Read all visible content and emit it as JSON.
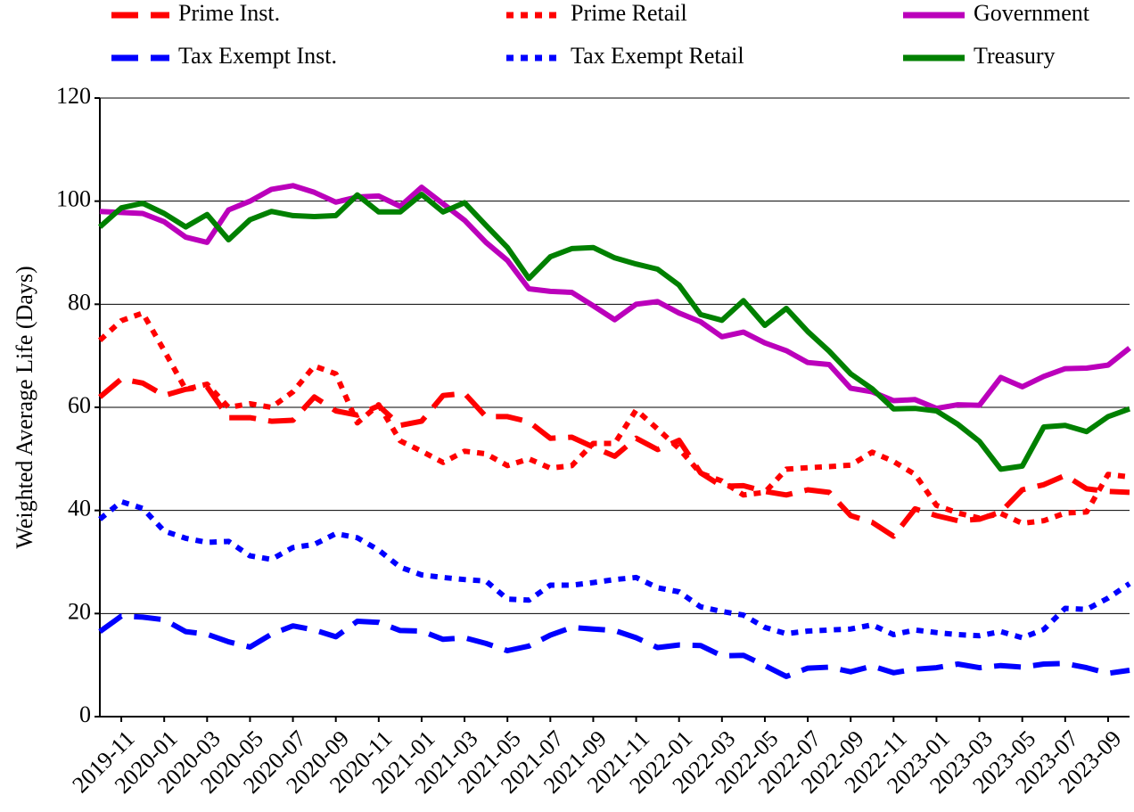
{
  "chart_data": {
    "type": "line",
    "y_label": "Weighted Average Life (Days)",
    "categories": [
      null,
      "2019-11",
      null,
      "2020-01",
      null,
      "2020-03",
      null,
      "2020-05",
      null,
      "2020-07",
      null,
      "2020-09",
      null,
      "2020-11",
      null,
      "2021-01",
      null,
      "2021-03",
      null,
      "2021-05",
      null,
      "2021-07",
      null,
      "2021-09",
      null,
      "2021-11",
      null,
      "2022-01",
      null,
      "2022-03",
      null,
      "2022-05",
      null,
      "2022-07",
      null,
      "2022-09",
      null,
      "2022-11",
      null,
      "2023-01",
      null,
      "2023-03",
      null,
      "2023-05",
      null,
      "2023-07",
      null,
      "2023-09",
      null
    ],
    "series": [
      {
        "name": "Prime Inst.",
        "color": "#ff0000",
        "style": "dashed",
        "values": [
          62,
          65.5,
          64.7,
          62.3,
          63.5,
          64,
          58,
          58,
          57.3,
          57.5,
          62,
          59.3,
          58.5,
          60.3,
          56.5,
          57.3,
          62.3,
          62.7,
          58.2,
          58.2,
          57.2,
          54,
          54.2,
          52.3,
          50.5,
          54,
          51.8,
          53.6,
          47.3,
          44.7,
          44.8,
          43.7,
          43,
          44,
          43.5,
          39,
          37.7,
          35,
          40.3,
          39,
          38,
          38.3,
          39.7,
          44,
          45,
          46.8,
          44.2,
          43.7,
          43.5
        ]
      },
      {
        "name": "Prime Retail",
        "color": "#ff0000",
        "style": "dotted",
        "values": [
          73,
          76.8,
          78.3,
          71,
          63.5,
          64.5,
          60,
          60.7,
          60,
          63,
          68,
          66.5,
          57,
          60.5,
          53.5,
          51.5,
          49.3,
          51.5,
          51,
          48.7,
          50,
          48.2,
          48.7,
          53,
          53,
          59.5,
          55.8,
          52,
          47.2,
          45.7,
          43,
          43.5,
          48,
          48.3,
          48.5,
          48.8,
          51.3,
          49.5,
          47,
          41,
          39.5,
          38.5,
          39.4,
          37.5,
          38,
          39.5,
          39.7,
          47,
          46.5
        ]
      },
      {
        "name": "Government",
        "color": "#bb00bb",
        "style": "solid",
        "values": [
          98,
          97.8,
          97.6,
          96,
          93,
          92,
          98.3,
          100,
          102.3,
          103,
          101.7,
          99.8,
          100.8,
          101,
          99,
          102.7,
          99.5,
          96.3,
          92,
          88.5,
          83,
          82.5,
          82.3,
          79.7,
          77,
          80,
          80.5,
          78.3,
          76.6,
          73.7,
          74.6,
          72.5,
          71,
          68.7,
          68.3,
          63.7,
          63,
          61.3,
          61.5,
          59.8,
          60.5,
          60.4,
          65.8,
          64,
          66,
          67.5,
          67.6,
          68.2,
          71.5
        ]
      },
      {
        "name": "Tax Exempt Inst.",
        "color": "#0000ff",
        "style": "dashed",
        "values": [
          16.5,
          19.5,
          19.3,
          18.8,
          16.5,
          16,
          14.5,
          13.5,
          16,
          17.6,
          16.8,
          15.5,
          18.5,
          18.3,
          16.7,
          16.6,
          15,
          15.3,
          14.2,
          12.8,
          13.7,
          15.8,
          17.3,
          17,
          16.7,
          15.3,
          13.4,
          13.9,
          13.8,
          11.8,
          11.9,
          9.9,
          7.8,
          9.4,
          9.6,
          8.7,
          9.8,
          8.5,
          9.2,
          9.5,
          10.2,
          9.5,
          9.9,
          9.6,
          10.2,
          10.3,
          9.5,
          8.4,
          9
        ]
      },
      {
        "name": "Tax Exempt Retail",
        "color": "#0000ff",
        "style": "dotted",
        "values": [
          38.3,
          41.7,
          40.4,
          36,
          34.6,
          33.8,
          34,
          31.2,
          30.5,
          32.8,
          33.4,
          35.5,
          34.7,
          32.3,
          29,
          27.5,
          27,
          26.6,
          26.3,
          22.8,
          22.6,
          25.5,
          25.5,
          26,
          26.6,
          27,
          25,
          24.2,
          21.3,
          20.4,
          19.7,
          17.3,
          16.1,
          16.6,
          16.8,
          17,
          17.8,
          15.9,
          16.8,
          16.3,
          15.9,
          15.7,
          16.5,
          15.3,
          16.9,
          21,
          20.8,
          23,
          25.8
        ]
      },
      {
        "name": "Treasury",
        "color": "#008000",
        "style": "solid",
        "values": [
          95,
          98.7,
          99.6,
          97.6,
          95,
          97.4,
          92.5,
          96.4,
          98,
          97.2,
          97,
          97.2,
          101.2,
          97.9,
          97.9,
          101.3,
          97.9,
          99.7,
          95.3,
          91,
          85,
          89.2,
          90.8,
          91,
          89,
          87.8,
          86.8,
          83.7,
          78,
          76.9,
          80.7,
          75.9,
          79.2,
          74.7,
          70.9,
          66.5,
          63.6,
          59.7,
          59.8,
          59.3,
          56.7,
          53.4,
          48,
          48.6,
          56.2,
          56.5,
          55.3,
          58.2,
          59.7
        ]
      }
    ],
    "ylim": [
      0,
      120
    ],
    "yticks": [
      0,
      20,
      40,
      60,
      80,
      100,
      120
    ],
    "grid": true,
    "legend": "top"
  }
}
